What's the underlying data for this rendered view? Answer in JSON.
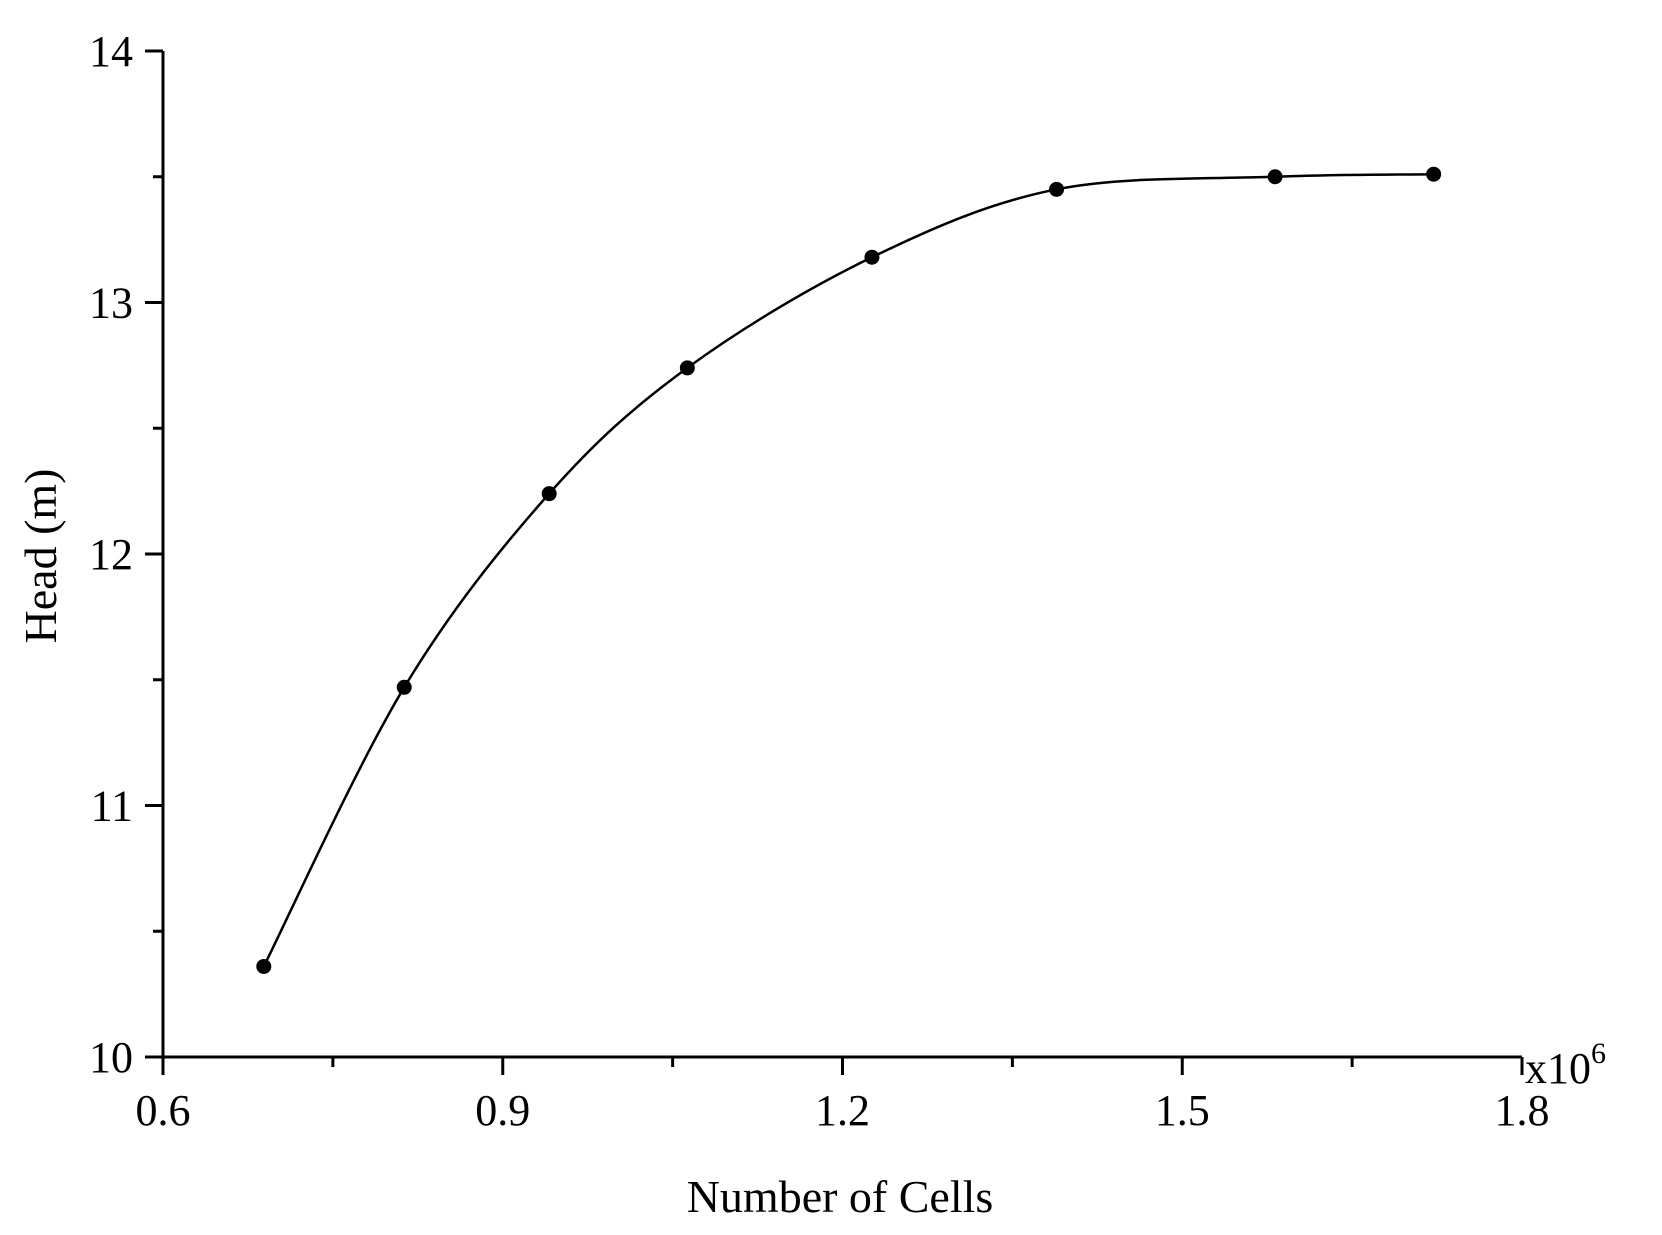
{
  "chart_data": {
    "type": "line",
    "title": "",
    "xlabel": "Number of Cells",
    "ylabel": "Head (m)",
    "x_multiplier_base": "x10",
    "x_multiplier_exponent": "6",
    "xlim": [
      0.6,
      1.8
    ],
    "ylim": [
      10,
      14
    ],
    "x_ticks": [
      "0.6",
      "0.9",
      "1.2",
      "1.5",
      "1.8"
    ],
    "y_ticks": [
      "10",
      "11",
      "12",
      "13",
      "14"
    ],
    "x_minor_step": 0.15,
    "y_minor_step": 0.5,
    "grid": false,
    "legend": "none",
    "marker": "circle",
    "line_style": "smooth",
    "color": "#000000",
    "series": [
      {
        "x": [
          0.689,
          0.813,
          0.941,
          1.063,
          1.226,
          1.389,
          1.582,
          1.722
        ],
        "y": [
          10.36,
          11.47,
          12.24,
          12.74,
          13.18,
          13.45,
          13.5,
          13.51
        ]
      }
    ]
  }
}
